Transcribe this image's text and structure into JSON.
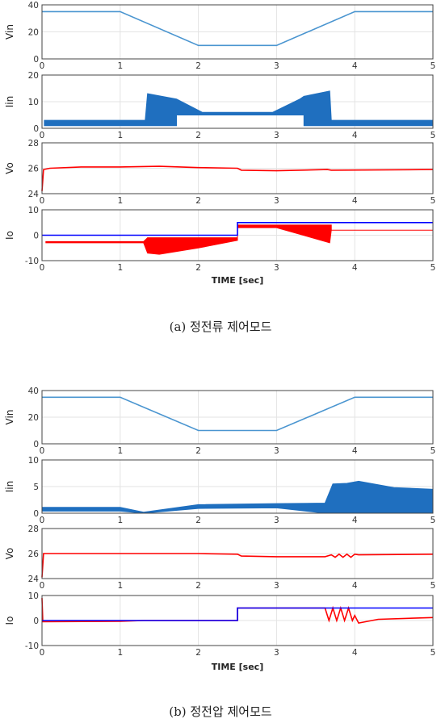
{
  "colors": {
    "blue_light": "#4a95d0",
    "blue_fill": "#1f6fbf",
    "red": "#ff0000",
    "blue": "#0000ff",
    "axis": "#444444",
    "grid": "#e3e3e3"
  },
  "chart_data": [
    {
      "figure": "(a) 정전류 제어모드",
      "caption": "(a) 정전류 제어모드",
      "xlabel": "TIME [sec]",
      "xlim": [
        0,
        5
      ],
      "xticks": [
        0,
        1,
        2,
        3,
        4,
        5
      ],
      "panels": [
        {
          "type": "line",
          "ylabel": "Vin",
          "ylim": [
            0,
            40
          ],
          "yticks": [
            0,
            20,
            40
          ],
          "series": [
            {
              "color": "#4a95d0",
              "points": [
                [
                  0,
                  35
                ],
                [
                  1,
                  35
                ],
                [
                  2,
                  10
                ],
                [
                  3,
                  10
                ],
                [
                  4,
                  35
                ],
                [
                  5,
                  35
                ]
              ]
            }
          ]
        },
        {
          "type": "area",
          "ylabel": "Iin",
          "ylim": [
            0,
            20
          ],
          "yticks": [
            0,
            10,
            20
          ],
          "series": [
            {
              "color": "#1f6fbf",
              "upper": [
                [
                  0.03,
                  3
                ],
                [
                  1.32,
                  3
                ],
                [
                  1.35,
                  13
                ],
                [
                  1.72,
                  11
                ],
                [
                  2.05,
                  6
                ],
                [
                  2.95,
                  6
                ],
                [
                  3.3,
                  11
                ],
                [
                  3.35,
                  12
                ],
                [
                  3.68,
                  14
                ],
                [
                  3.7,
                  3
                ],
                [
                  5,
                  3
                ]
              ],
              "lower": [
                [
                  0.03,
                  1
                ],
                [
                  1.32,
                  1
                ],
                [
                  1.35,
                  1
                ],
                [
                  1.72,
                  1
                ],
                [
                  1.72,
                  5
                ],
                [
                  2.05,
                  5
                ],
                [
                  2.95,
                  5
                ],
                [
                  3.35,
                  5
                ],
                [
                  3.35,
                  1
                ],
                [
                  5,
                  1
                ]
              ]
            }
          ]
        },
        {
          "type": "line",
          "ylabel": "Vo",
          "ylim": [
            24,
            28
          ],
          "yticks": [
            24,
            26,
            28
          ],
          "series": [
            {
              "color": "#ff0000",
              "points": [
                [
                  0,
                  24.2
                ],
                [
                  0.02,
                  25.9
                ],
                [
                  0.1,
                  26.0
                ],
                [
                  0.5,
                  26.1
                ],
                [
                  1,
                  26.1
                ],
                [
                  1.5,
                  26.15
                ],
                [
                  2,
                  26.05
                ],
                [
                  2.5,
                  26.0
                ],
                [
                  2.55,
                  25.85
                ],
                [
                  3,
                  25.8
                ],
                [
                  3.65,
                  25.9
                ],
                [
                  3.7,
                  25.85
                ],
                [
                  5,
                  25.9
                ]
              ]
            }
          ]
        },
        {
          "type": "area",
          "ylabel": "Io",
          "ylim": [
            -10,
            10
          ],
          "yticks": [
            -10,
            0,
            10
          ],
          "series": [
            {
              "color": "#ff0000",
              "upper": [
                [
                  0.05,
                  -2.5
                ],
                [
                  1.3,
                  -2.5
                ],
                [
                  1.35,
                  -1
                ],
                [
                  2.5,
                  -1
                ],
                [
                  2.5,
                  4
                ],
                [
                  3.7,
                  4
                ],
                [
                  3.7,
                  2
                ],
                [
                  5,
                  2
                ]
              ],
              "lower": [
                [
                  0.05,
                  -3
                ],
                [
                  1.3,
                  -3
                ],
                [
                  1.35,
                  -7
                ],
                [
                  1.5,
                  -7.5
                ],
                [
                  2.0,
                  -5
                ],
                [
                  2.5,
                  -2
                ],
                [
                  2.5,
                  3
                ],
                [
                  3.0,
                  3
                ],
                [
                  3.68,
                  -3
                ],
                [
                  3.7,
                  2
                ],
                [
                  5,
                  2
                ]
              ]
            },
            {
              "color": "#0000ff",
              "points": [
                [
                  0,
                  0
                ],
                [
                  2.5,
                  0
                ],
                [
                  2.5,
                  5
                ],
                [
                  5,
                  5
                ]
              ]
            }
          ]
        }
      ]
    },
    {
      "figure": "(b) 정전압 제어모드",
      "caption": "(b) 정전압 제어모드",
      "xlabel": "TIME [sec]",
      "xlim": [
        0,
        5
      ],
      "xticks": [
        0,
        1,
        2,
        3,
        4,
        5
      ],
      "panels": [
        {
          "type": "line",
          "ylabel": "Vin",
          "ylim": [
            0,
            40
          ],
          "yticks": [
            0,
            20,
            40
          ],
          "series": [
            {
              "color": "#4a95d0",
              "points": [
                [
                  0,
                  35
                ],
                [
                  1,
                  35
                ],
                [
                  2,
                  10
                ],
                [
                  3,
                  10
                ],
                [
                  4,
                  35
                ],
                [
                  5,
                  35
                ]
              ]
            }
          ]
        },
        {
          "type": "area",
          "ylabel": "Iin",
          "ylim": [
            0,
            10
          ],
          "yticks": [
            0,
            5,
            10
          ],
          "series": [
            {
              "color": "#1f6fbf",
              "upper": [
                [
                  0,
                  1.1
                ],
                [
                  1,
                  1.1
                ],
                [
                  1.3,
                  0.2
                ],
                [
                  2,
                  1.6
                ],
                [
                  3,
                  1.8
                ],
                [
                  3.62,
                  1.9
                ],
                [
                  3.72,
                  5.5
                ],
                [
                  3.9,
                  5.6
                ],
                [
                  4.05,
                  6
                ],
                [
                  4.5,
                  4.8
                ],
                [
                  5,
                  4.5
                ]
              ],
              "lower": [
                [
                  0,
                  0.4
                ],
                [
                  1,
                  0.4
                ],
                [
                  1.3,
                  0
                ],
                [
                  2,
                  0.9
                ],
                [
                  3,
                  1.0
                ],
                [
                  3.62,
                  0
                ],
                [
                  5,
                  0
                ]
              ]
            }
          ]
        },
        {
          "type": "line",
          "ylabel": "Vo",
          "ylim": [
            24,
            28
          ],
          "yticks": [
            24,
            26,
            28
          ],
          "series": [
            {
              "color": "#ff0000",
              "points": [
                [
                  0,
                  24.1
                ],
                [
                  0.02,
                  26
                ],
                [
                  1,
                  26
                ],
                [
                  2,
                  26
                ],
                [
                  2.5,
                  25.95
                ],
                [
                  2.55,
                  25.8
                ],
                [
                  3,
                  25.75
                ],
                [
                  3.62,
                  25.75
                ],
                [
                  3.7,
                  25.9
                ],
                [
                  3.75,
                  25.7
                ],
                [
                  3.8,
                  25.95
                ],
                [
                  3.85,
                  25.7
                ],
                [
                  3.9,
                  25.95
                ],
                [
                  3.95,
                  25.7
                ],
                [
                  4.0,
                  25.95
                ],
                [
                  4.05,
                  25.9
                ],
                [
                  5,
                  25.95
                ]
              ]
            }
          ]
        },
        {
          "type": "line",
          "ylabel": "Io",
          "ylim": [
            -10,
            10
          ],
          "yticks": [
            -10,
            0,
            10
          ],
          "series": [
            {
              "color": "#ff0000",
              "points": [
                [
                  0,
                  9
                ],
                [
                  0.01,
                  -0.5
                ],
                [
                  1,
                  -0.3
                ],
                [
                  1.3,
                  0
                ],
                [
                  2.5,
                  0
                ],
                [
                  2.5,
                  5
                ],
                [
                  3.62,
                  5
                ],
                [
                  3.67,
                  0
                ],
                [
                  3.72,
                  5
                ],
                [
                  3.77,
                  0
                ],
                [
                  3.82,
                  5
                ],
                [
                  3.87,
                  0
                ],
                [
                  3.92,
                  5
                ],
                [
                  3.97,
                  0
                ],
                [
                  4.0,
                  2
                ],
                [
                  4.05,
                  -1
                ],
                [
                  4.3,
                  0.5
                ],
                [
                  5,
                  1.2
                ]
              ]
            },
            {
              "color": "#0000ff",
              "points": [
                [
                  0,
                  0
                ],
                [
                  2.5,
                  0
                ],
                [
                  2.5,
                  5
                ],
                [
                  5,
                  5
                ]
              ]
            }
          ]
        }
      ]
    }
  ]
}
